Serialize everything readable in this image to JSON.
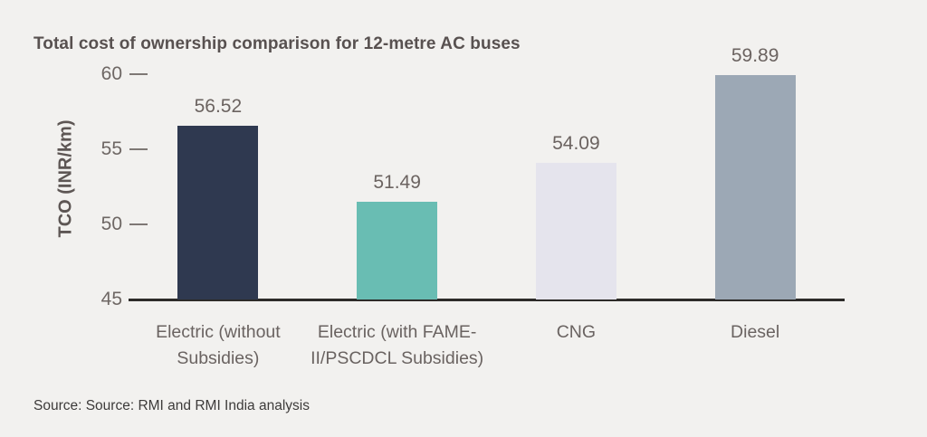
{
  "title": "Total cost of ownership comparison for 12-metre AC buses",
  "source": "Source: Source: RMI and RMI India analysis",
  "colors": {
    "background": "#f2f1ef",
    "axis_line": "#2d2b29",
    "tick_dash": "#7e7875",
    "title_text": "#585150",
    "label_text": "#6a6361",
    "source_text": "#3d3b3a"
  },
  "chart_data": {
    "type": "bar",
    "title": "Total cost of ownership comparison for 12-metre AC buses",
    "categories": [
      "Electric (without Subsidies)",
      "Electric (with FAME-II/PSCDCL Subsidies)",
      "CNG",
      "Diesel"
    ],
    "values": [
      56.52,
      51.49,
      54.09,
      59.89
    ],
    "value_labels": [
      "56.52",
      "51.49",
      "54.09",
      "59.89"
    ],
    "bar_colors": [
      "#2f3950",
      "#69bdb3",
      "#e5e4ed",
      "#9ca8b5"
    ],
    "xlabel": "",
    "ylabel": "TCO (INR/km)",
    "ylim": [
      45,
      60
    ],
    "yticks": [
      45,
      50,
      55,
      60
    ],
    "grid": false,
    "legend": null
  }
}
